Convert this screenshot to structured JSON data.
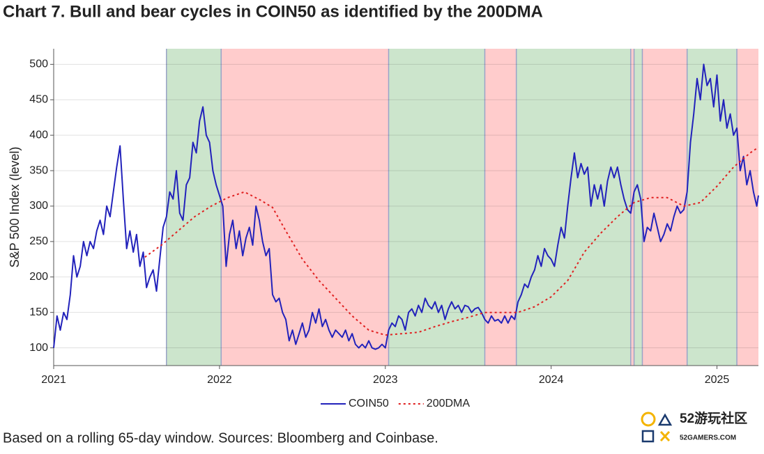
{
  "chart_data": {
    "type": "line",
    "title": "Chart 7. Bull and bear cycles in COIN50 as identified by the 200DMA",
    "y_label": "S&P 500 Index (level)",
    "footnote": "Based on a rolling 65-day window. Sources: Bloomberg and Coinbase.",
    "watermark": [
      "52游玩社区",
      "52GAMERS.COM"
    ],
    "xlim": [
      2021,
      2025.25
    ],
    "xticks": [
      2021,
      2022,
      2023,
      2024,
      2025
    ],
    "ylim": [
      75,
      522
    ],
    "yticks": [
      100,
      150,
      200,
      250,
      300,
      350,
      400,
      450,
      500
    ],
    "grid": true,
    "legend": "bottom",
    "regions": [
      {
        "start": 2021.68,
        "end": 2022.01,
        "color": "#cce5cc"
      },
      {
        "start": 2022.01,
        "end": 2023.02,
        "color": "#ffcccc"
      },
      {
        "start": 2023.02,
        "end": 2023.6,
        "color": "#cce5cc"
      },
      {
        "start": 2023.6,
        "end": 2023.79,
        "color": "#ffcccc"
      },
      {
        "start": 2023.79,
        "end": 2024.48,
        "color": "#cce5cc"
      },
      {
        "start": 2024.48,
        "end": 2024.5,
        "color": "#ffcccc"
      },
      {
        "start": 2024.5,
        "end": 2024.55,
        "color": "#cce5cc"
      },
      {
        "start": 2024.55,
        "end": 2024.82,
        "color": "#ffcccc"
      },
      {
        "start": 2024.82,
        "end": 2025.12,
        "color": "#cce5cc"
      },
      {
        "start": 2025.12,
        "end": 2025.25,
        "color": "#ffcccc"
      }
    ],
    "series": [
      {
        "name": "COIN50",
        "color": "#2222bb",
        "dashed": false,
        "x": [
          2021.0,
          2021.02,
          2021.04,
          2021.06,
          2021.08,
          2021.1,
          2021.12,
          2021.14,
          2021.16,
          2021.18,
          2021.2,
          2021.22,
          2021.24,
          2021.26,
          2021.28,
          2021.3,
          2021.32,
          2021.34,
          2021.36,
          2021.38,
          2021.4,
          2021.42,
          2021.44,
          2021.46,
          2021.48,
          2021.5,
          2021.52,
          2021.54,
          2021.56,
          2021.58,
          2021.6,
          2021.62,
          2021.64,
          2021.66,
          2021.68,
          2021.7,
          2021.72,
          2021.74,
          2021.76,
          2021.78,
          2021.8,
          2021.82,
          2021.84,
          2021.86,
          2021.88,
          2021.9,
          2021.92,
          2021.94,
          2021.96,
          2021.98,
          2022.0,
          2022.02,
          2022.04,
          2022.06,
          2022.08,
          2022.1,
          2022.12,
          2022.14,
          2022.16,
          2022.18,
          2022.2,
          2022.22,
          2022.24,
          2022.26,
          2022.28,
          2022.3,
          2022.32,
          2022.34,
          2022.36,
          2022.38,
          2022.4,
          2022.42,
          2022.44,
          2022.46,
          2022.48,
          2022.5,
          2022.52,
          2022.54,
          2022.56,
          2022.58,
          2022.6,
          2022.62,
          2022.64,
          2022.66,
          2022.68,
          2022.7,
          2022.72,
          2022.74,
          2022.76,
          2022.78,
          2022.8,
          2022.82,
          2022.84,
          2022.86,
          2022.88,
          2022.9,
          2022.92,
          2022.94,
          2022.96,
          2022.98,
          2023.0,
          2023.02,
          2023.04,
          2023.06,
          2023.08,
          2023.1,
          2023.12,
          2023.14,
          2023.16,
          2023.18,
          2023.2,
          2023.22,
          2023.24,
          2023.26,
          2023.28,
          2023.3,
          2023.32,
          2023.34,
          2023.36,
          2023.38,
          2023.4,
          2023.42,
          2023.44,
          2023.46,
          2023.48,
          2023.5,
          2023.52,
          2023.54,
          2023.56,
          2023.58,
          2023.6,
          2023.62,
          2023.64,
          2023.66,
          2023.68,
          2023.7,
          2023.72,
          2023.74,
          2023.76,
          2023.78,
          2023.8,
          2023.82,
          2023.84,
          2023.86,
          2023.88,
          2023.9,
          2023.92,
          2023.94,
          2023.96,
          2023.98,
          2024.0,
          2024.02,
          2024.04,
          2024.06,
          2024.08,
          2024.1,
          2024.12,
          2024.14,
          2024.16,
          2024.18,
          2024.2,
          2024.22,
          2024.24,
          2024.26,
          2024.28,
          2024.3,
          2024.32,
          2024.34,
          2024.36,
          2024.38,
          2024.4,
          2024.42,
          2024.44,
          2024.46,
          2024.48,
          2024.5,
          2024.52,
          2024.54,
          2024.56,
          2024.58,
          2024.6,
          2024.62,
          2024.64,
          2024.66,
          2024.68,
          2024.7,
          2024.72,
          2024.74,
          2024.76,
          2024.78,
          2024.8,
          2024.82,
          2024.84,
          2024.86,
          2024.88,
          2024.9,
          2024.92,
          2024.94,
          2024.96,
          2024.98,
          2025.0,
          2025.02,
          2025.04,
          2025.06,
          2025.08,
          2025.1,
          2025.12,
          2025.14,
          2025.16,
          2025.18,
          2025.2,
          2025.22,
          2025.24,
          2025.25
        ],
        "values": [
          100,
          145,
          125,
          150,
          140,
          175,
          230,
          200,
          215,
          250,
          230,
          250,
          240,
          265,
          280,
          260,
          300,
          285,
          320,
          355,
          385,
          310,
          240,
          265,
          235,
          260,
          215,
          235,
          185,
          200,
          210,
          180,
          225,
          270,
          285,
          320,
          310,
          350,
          290,
          280,
          330,
          340,
          390,
          375,
          420,
          440,
          400,
          390,
          350,
          330,
          315,
          300,
          215,
          260,
          280,
          240,
          265,
          230,
          255,
          270,
          245,
          300,
          280,
          250,
          230,
          240,
          175,
          165,
          170,
          150,
          140,
          110,
          125,
          105,
          120,
          135,
          115,
          125,
          150,
          135,
          155,
          130,
          140,
          125,
          115,
          125,
          120,
          115,
          125,
          110,
          120,
          105,
          100,
          105,
          100,
          110,
          100,
          98,
          100,
          105,
          100,
          125,
          135,
          130,
          145,
          140,
          125,
          150,
          155,
          145,
          160,
          150,
          170,
          160,
          155,
          165,
          150,
          160,
          140,
          155,
          165,
          155,
          160,
          150,
          160,
          158,
          150,
          155,
          157,
          150,
          140,
          135,
          145,
          138,
          140,
          135,
          145,
          135,
          145,
          140,
          165,
          175,
          190,
          185,
          200,
          210,
          230,
          215,
          240,
          230,
          225,
          215,
          245,
          270,
          255,
          300,
          340,
          375,
          340,
          360,
          345,
          355,
          300,
          330,
          310,
          330,
          300,
          335,
          355,
          340,
          355,
          330,
          310,
          295,
          290,
          320,
          330,
          310,
          250,
          270,
          265,
          290,
          270,
          250,
          260,
          275,
          265,
          285,
          300,
          290,
          295,
          320,
          390,
          430,
          480,
          450,
          500,
          470,
          480,
          440,
          485,
          420,
          450,
          410,
          430,
          400,
          410,
          350,
          370,
          330,
          350,
          320,
          300,
          315
        ]
      },
      {
        "name": "200DMA",
        "color": "#e02020",
        "dashed": true,
        "x": [
          2021.55,
          2021.65,
          2021.75,
          2021.85,
          2021.95,
          2022.05,
          2022.15,
          2022.25,
          2022.32,
          2022.4,
          2022.5,
          2022.6,
          2022.7,
          2022.8,
          2022.9,
          2023.0,
          2023.1,
          2023.2,
          2023.3,
          2023.4,
          2023.5,
          2023.6,
          2023.7,
          2023.8,
          2023.9,
          2024.0,
          2024.1,
          2024.2,
          2024.3,
          2024.4,
          2024.5,
          2024.6,
          2024.7,
          2024.8,
          2024.9,
          2025.0,
          2025.1,
          2025.2,
          2025.25
        ],
        "values": [
          228,
          245,
          265,
          285,
          300,
          312,
          320,
          308,
          298,
          265,
          225,
          195,
          170,
          145,
          125,
          118,
          120,
          122,
          130,
          137,
          143,
          150,
          150,
          150,
          158,
          172,
          195,
          235,
          262,
          285,
          305,
          312,
          312,
          300,
          305,
          328,
          355,
          375,
          383
        ]
      }
    ]
  }
}
